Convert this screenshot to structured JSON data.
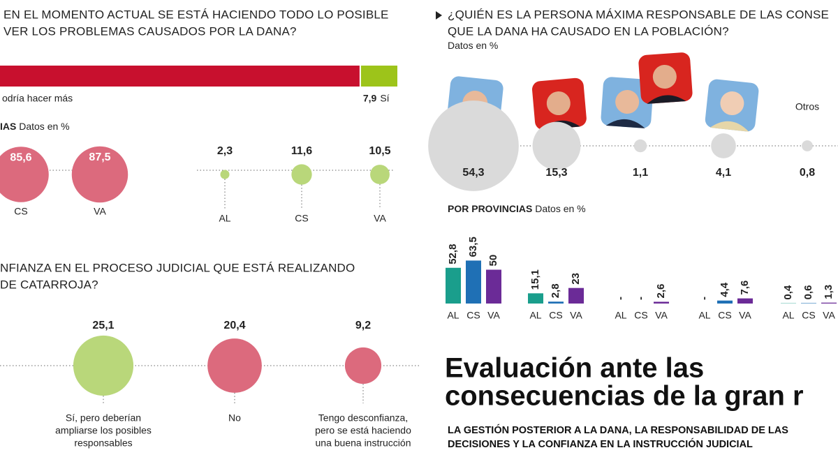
{
  "chart_data": [
    {
      "type": "hbar-stacked",
      "title_lines": [
        "EN EL MOMENTO ACTUAL SE ESTÁ HACIENDO TODO LO POSIBLE",
        "VER LOS PROBLEMAS CAUSADOS POR LA DANA?"
      ],
      "series": [
        {
          "name": "odría hacer más",
          "color": "#c8102e",
          "values": [
            92.1
          ]
        },
        {
          "name": "Sí",
          "color": "#9dc41a",
          "values": [
            7.9
          ],
          "value_labels": [
            "7,9"
          ]
        }
      ]
    },
    {
      "type": "bubble",
      "subtitle_bold": "IAS",
      "subtitle": "Datos en %",
      "series": [
        {
          "color": "#dc6a7d",
          "categories": [
            "CS",
            "VA"
          ],
          "values": [
            85.6,
            87.5
          ],
          "value_labels": [
            "85,6",
            "87,5"
          ]
        },
        {
          "color": "#b9d77a",
          "categories": [
            "AL",
            "CS",
            "VA"
          ],
          "values": [
            2.3,
            11.6,
            10.5
          ],
          "value_labels": [
            "2,3",
            "11,6",
            "10,5"
          ]
        }
      ]
    },
    {
      "type": "bubble",
      "title_lines": [
        "NFIANZA EN EL PROCESO JUDICIAL QUE ESTÁ REALIZANDO",
        "DE CATARROJA?"
      ],
      "categories": [
        [
          "Sí, pero deberían",
          "ampliarse los posibles",
          "responsables"
        ],
        [
          "No"
        ],
        [
          "Tengo desconfianza,",
          "pero se está haciendo",
          "una buena instrucción"
        ]
      ],
      "values": [
        25.1,
        20.4,
        9.2
      ],
      "value_labels": [
        "25,1",
        "20,4",
        "9,2"
      ],
      "colors": [
        "#b9d77a",
        "#dc6a7d",
        "#dc6a7d"
      ]
    },
    {
      "type": "bubble",
      "title_lines": [
        "¿QUIÉN ES LA PERSONA MÁXIMA RESPONSABLE DE LAS CONSE",
        "QUE LA DANA HA CAUSADO EN LA POBLACIÓN?"
      ],
      "subtitle": "Datos en %",
      "categories": [
        null,
        null,
        null,
        null,
        "Otros"
      ],
      "values": [
        54.3,
        15.3,
        1.1,
        4.1,
        0.8
      ],
      "value_labels": [
        "54,3",
        "15,3",
        "1,1",
        "4,1",
        "0,8"
      ],
      "color": "#dadada"
    },
    {
      "type": "bar",
      "subtitle_bold": "POR PROVINCIAS",
      "subtitle": "Datos en %",
      "categories": [
        null,
        null,
        null,
        null,
        null
      ],
      "series": [
        {
          "name": "AL",
          "color": "#1a9e8c",
          "values": [
            52.8,
            15.1,
            null,
            null,
            0.4
          ],
          "value_labels": [
            "52,8",
            "15,1",
            "-",
            "-",
            "0,4"
          ]
        },
        {
          "name": "CS",
          "color": "#1f70b5",
          "values": [
            63.5,
            2.8,
            null,
            4.4,
            0.6
          ],
          "value_labels": [
            "63,5",
            "2,8",
            "-",
            "4,4",
            "0,6"
          ]
        },
        {
          "name": "VA",
          "color": "#6b2b97",
          "values": [
            50,
            23,
            2.6,
            7.6,
            1.3
          ],
          "value_labels": [
            "50",
            "23",
            "2,6",
            "7,6",
            "1,3"
          ]
        }
      ]
    }
  ],
  "headline": {
    "title_lines": [
      "Evaluación ante las",
      "consecuencias de la gran r"
    ],
    "subtitle_lines": [
      "LA GESTIÓN POSTERIOR A LA DANA, LA RESPONSABILIDAD DE LAS",
      "DECISIONES Y LA CONFIANZA EN LA INSTRUCCIÓN JUDICIAL"
    ]
  }
}
